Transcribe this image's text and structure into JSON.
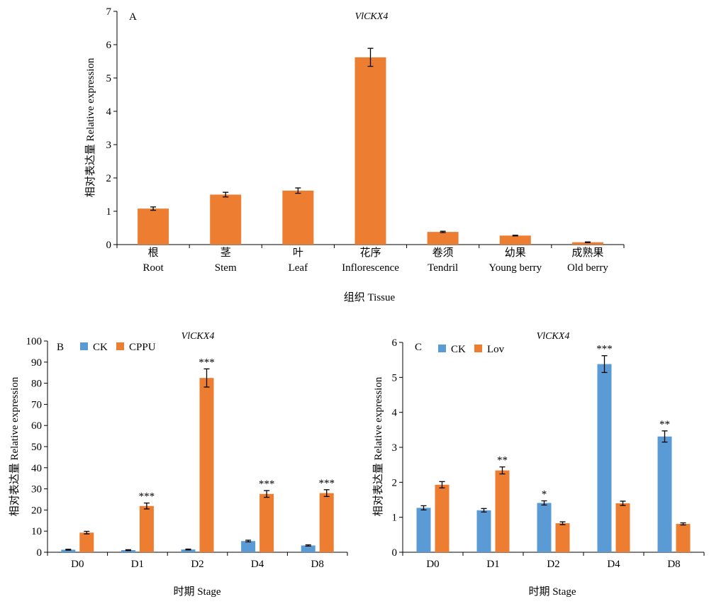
{
  "colors": {
    "ck": "#5b9bd5",
    "treat": "#ed7d31",
    "axis": "#000000"
  },
  "chart_data": [
    {
      "type": "bar",
      "panel": "A",
      "title": "VlCKX4",
      "ylabel": "相对表达量 Relative expression",
      "xlabel": "组织 Tissue",
      "ylim": [
        0,
        7
      ],
      "yticks": [
        "0",
        "1",
        "2",
        "3",
        "4",
        "5",
        "6",
        "7"
      ],
      "categories": [
        {
          "cn": "根",
          "en": "Root"
        },
        {
          "cn": "茎",
          "en": "Stem"
        },
        {
          "cn": "叶",
          "en": "Leaf"
        },
        {
          "cn": "花序",
          "en": "Inflorescence"
        },
        {
          "cn": "卷须",
          "en": "Tendril"
        },
        {
          "cn": "幼果",
          "en": "Young berry"
        },
        {
          "cn": "成熟果",
          "en": "Old berry"
        }
      ],
      "series": [
        {
          "color": "#ed7d31",
          "values": [
            1.08,
            1.5,
            1.62,
            5.62,
            0.38,
            0.27,
            0.07
          ],
          "errors": [
            0.05,
            0.07,
            0.08,
            0.27,
            0.02,
            0.01,
            0.01
          ]
        }
      ]
    },
    {
      "type": "bar",
      "panel": "B",
      "title": "VlCKX4",
      "ylabel": "相对表达量 Relative expression",
      "xlabel": "时期 Stage",
      "ylim": [
        0,
        100
      ],
      "yticks": [
        "0",
        "10",
        "20",
        "30",
        "40",
        "50",
        "60",
        "70",
        "80",
        "90",
        "100"
      ],
      "legend": [
        "CK",
        "CPPU"
      ],
      "categories": [
        "D0",
        "D1",
        "D2",
        "D4",
        "D8"
      ],
      "series": [
        {
          "name": "CK",
          "color": "#5b9bd5",
          "values": [
            1.2,
            1.0,
            1.3,
            5.3,
            3.2
          ],
          "errors": [
            0.2,
            0.2,
            0.2,
            0.4,
            0.3
          ]
        },
        {
          "name": "CPPU",
          "color": "#ed7d31",
          "values": [
            9.3,
            21.9,
            82.5,
            27.6,
            28.0
          ],
          "errors": [
            0.6,
            1.4,
            4.3,
            1.6,
            1.6
          ]
        }
      ],
      "annotations": [
        "",
        "***",
        "***",
        "***",
        "***"
      ]
    },
    {
      "type": "bar",
      "panel": "C",
      "title": "VlCKX4",
      "ylabel": "相对表达量 Relative expression",
      "xlabel": "时期 Stage",
      "ylim": [
        0,
        6
      ],
      "yticks": [
        "0",
        "1",
        "2",
        "3",
        "4",
        "5",
        "6"
      ],
      "legend": [
        "CK",
        "Lov"
      ],
      "categories": [
        "D0",
        "D1",
        "D2",
        "D4",
        "D8"
      ],
      "series": [
        {
          "name": "CK",
          "color": "#5b9bd5",
          "values": [
            1.27,
            1.2,
            1.41,
            5.38,
            3.31
          ],
          "errors": [
            0.06,
            0.05,
            0.06,
            0.24,
            0.16
          ]
        },
        {
          "name": "Lov",
          "color": "#ed7d31",
          "values": [
            1.93,
            2.34,
            0.83,
            1.4,
            0.81
          ],
          "errors": [
            0.09,
            0.1,
            0.04,
            0.06,
            0.03
          ]
        }
      ],
      "annotations": [
        {
          "series": "",
          "text": ""
        },
        {
          "series": "Lov",
          "text": "**"
        },
        {
          "series": "CK",
          "text": "*"
        },
        {
          "series": "CK",
          "text": "***"
        },
        {
          "series": "CK",
          "text": "**"
        }
      ]
    }
  ]
}
